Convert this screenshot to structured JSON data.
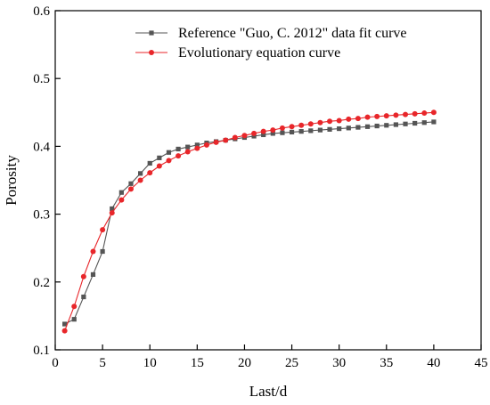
{
  "chart_data": {
    "type": "line",
    "xlabel": "Last/d",
    "ylabel": "Porosity",
    "xlim": [
      0,
      45
    ],
    "ylim": [
      0.1,
      0.6
    ],
    "x_ticks": [
      0,
      5,
      10,
      15,
      20,
      25,
      30,
      35,
      40,
      45
    ],
    "y_ticks": [
      0.1,
      0.2,
      0.3,
      0.4,
      0.5,
      0.6
    ],
    "x_tick_labels": [
      "0",
      "5",
      "10",
      "15",
      "20",
      "25",
      "30",
      "35",
      "40",
      "45"
    ],
    "y_tick_labels": [
      "0.1",
      "0.2",
      "0.3",
      "0.4",
      "0.5",
      "0.6"
    ],
    "grid": false,
    "legend_position": "top-right",
    "series": [
      {
        "name": "Reference \"Guo, C. 2012\" data fit curve",
        "color": "#555555",
        "marker": "square",
        "x": [
          1,
          2,
          3,
          4,
          5,
          6,
          7,
          8,
          9,
          10,
          11,
          12,
          13,
          14,
          15,
          16,
          17,
          18,
          19,
          20,
          21,
          22,
          23,
          24,
          25,
          26,
          27,
          28,
          29,
          30,
          31,
          32,
          33,
          34,
          35,
          36,
          37,
          38,
          39,
          40
        ],
        "values": [
          0.138,
          0.145,
          0.178,
          0.211,
          0.245,
          0.308,
          0.332,
          0.345,
          0.36,
          0.375,
          0.383,
          0.391,
          0.396,
          0.399,
          0.402,
          0.405,
          0.407,
          0.409,
          0.411,
          0.413,
          0.415,
          0.417,
          0.419,
          0.42,
          0.421,
          0.422,
          0.423,
          0.424,
          0.425,
          0.426,
          0.427,
          0.428,
          0.429,
          0.43,
          0.431,
          0.432,
          0.433,
          0.434,
          0.435,
          0.436
        ]
      },
      {
        "name": "Evolutionary equation curve",
        "color": "#e8262a",
        "marker": "circle",
        "x": [
          1,
          2,
          3,
          4,
          5,
          6,
          7,
          8,
          9,
          10,
          11,
          12,
          13,
          14,
          15,
          16,
          17,
          18,
          19,
          20,
          21,
          22,
          23,
          24,
          25,
          26,
          27,
          28,
          29,
          30,
          31,
          32,
          33,
          34,
          35,
          36,
          37,
          38,
          39,
          40
        ],
        "values": [
          0.128,
          0.164,
          0.208,
          0.245,
          0.277,
          0.302,
          0.321,
          0.337,
          0.35,
          0.361,
          0.371,
          0.379,
          0.386,
          0.392,
          0.397,
          0.402,
          0.406,
          0.409,
          0.413,
          0.416,
          0.419,
          0.422,
          0.424,
          0.427,
          0.429,
          0.431,
          0.433,
          0.435,
          0.437,
          0.438,
          0.44,
          0.441,
          0.443,
          0.444,
          0.445,
          0.446,
          0.447,
          0.448,
          0.449,
          0.45
        ]
      }
    ]
  }
}
